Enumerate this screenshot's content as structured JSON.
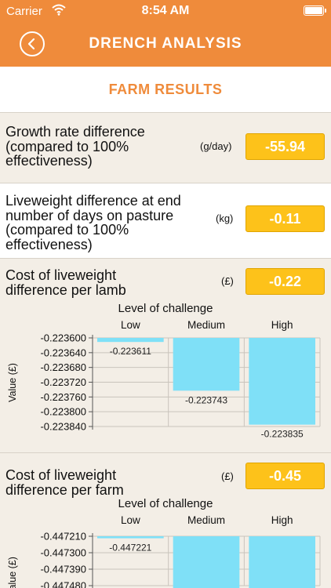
{
  "status_bar": {
    "carrier": "Carrier",
    "time": "8:54 AM"
  },
  "nav": {
    "title": "DRENCH ANALYSIS"
  },
  "section": {
    "title": "FARM RESULTS"
  },
  "results": [
    {
      "label_lines": [
        "Growth rate difference",
        "(compared to 100%",
        "effectiveness)"
      ],
      "unit": "(g/day)",
      "value": "-55.94"
    },
    {
      "label_lines": [
        "Liveweight difference at end",
        "number of days on pasture",
        "(compared to 100%",
        "effectiveness)"
      ],
      "unit": "(kg)",
      "value": "-0.11"
    },
    {
      "label_lines": [
        "Cost of liveweight",
        "difference per lamb"
      ],
      "unit": "(£)",
      "value": "-0.22"
    },
    {
      "label_lines": [
        "Cost of liveweight",
        "difference per farm"
      ],
      "unit": "(£)",
      "value": "-0.45"
    }
  ],
  "chart_data": [
    {
      "type": "bar",
      "title": "Level of challenge",
      "ylabel": "Value (£)",
      "categories": [
        "Low",
        "Medium",
        "High"
      ],
      "values": [
        -0.223611,
        -0.223743,
        -0.223835
      ],
      "data_labels": [
        "-0.223611",
        "-0.223743",
        "-0.223835"
      ],
      "y_ticks": [
        "-0.223600",
        "-0.223640",
        "-0.223680",
        "-0.223720",
        "-0.223760",
        "-0.223800",
        "-0.223840"
      ],
      "ylim": [
        -0.22385,
        -0.2236
      ],
      "grid": true,
      "bar_color": "#7fe0f7"
    },
    {
      "type": "bar",
      "title": "Level of challenge",
      "ylabel": "Value (£)",
      "categories": [
        "Low",
        "Medium",
        "High"
      ],
      "values": [
        -0.447221,
        null,
        null
      ],
      "data_labels": [
        "-0.447221",
        "",
        ""
      ],
      "y_ticks": [
        "-0.447210",
        "-0.447300",
        "-0.447390",
        "-0.447480"
      ],
      "ylim": [
        -0.44748,
        -0.44721
      ],
      "grid": true,
      "bar_color": "#7fe0f7"
    }
  ]
}
